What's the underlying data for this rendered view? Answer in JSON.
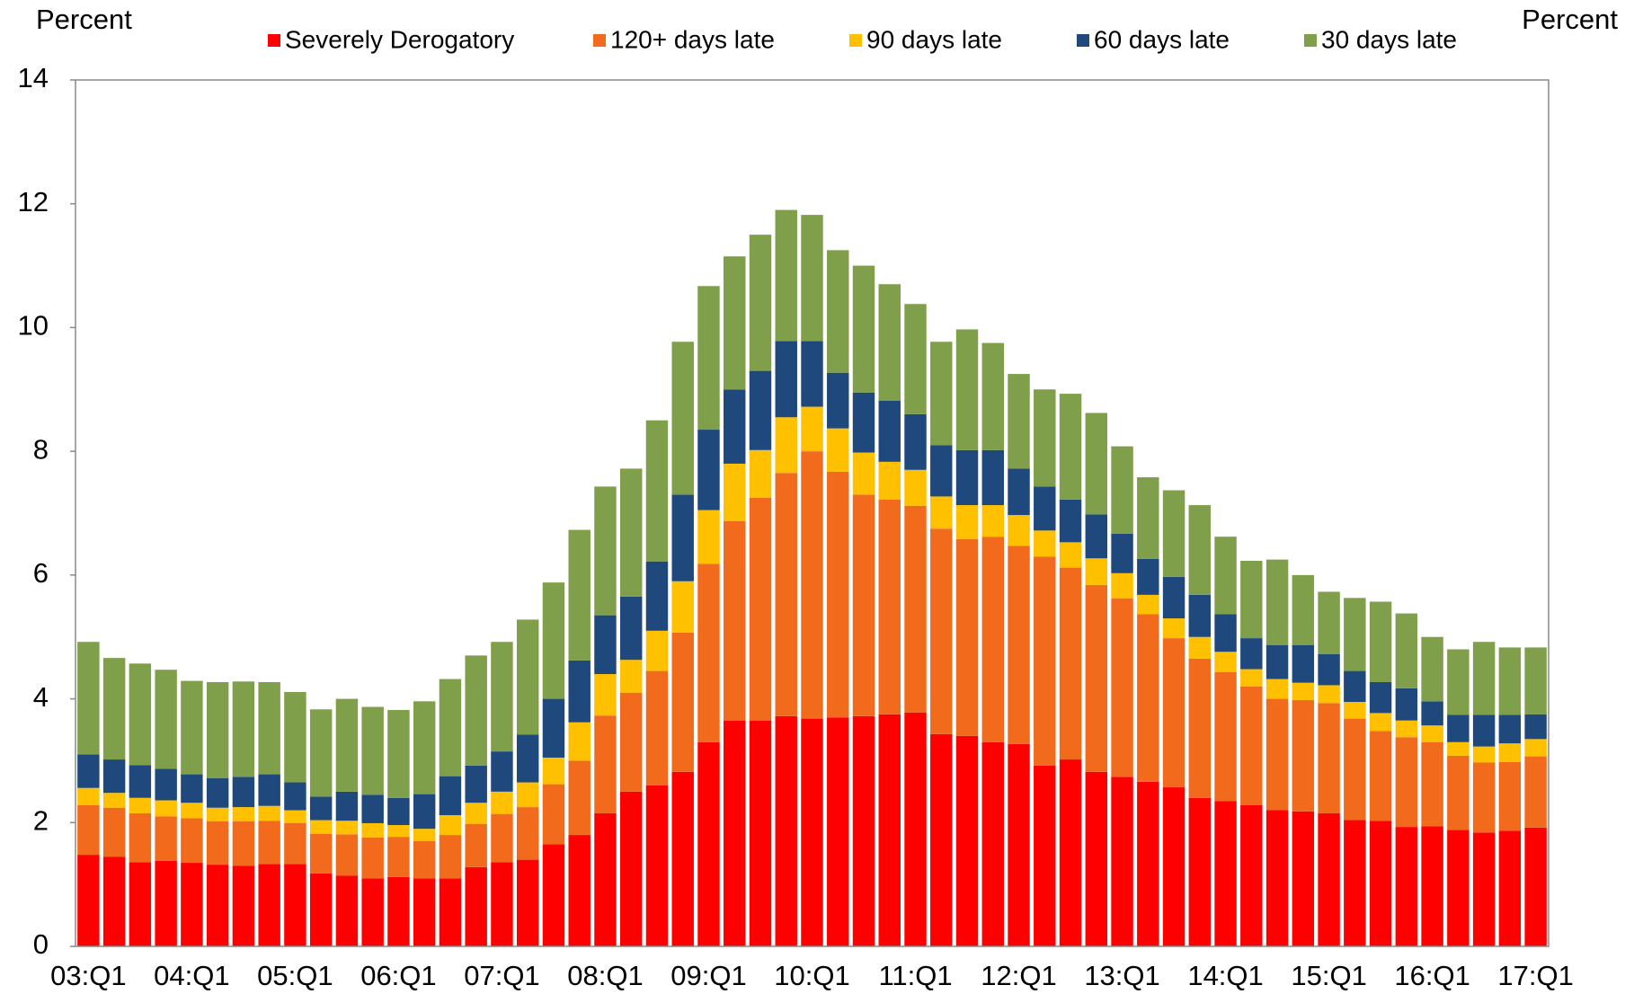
{
  "chart_data": {
    "type": "stacked_bar",
    "ylabel": "Percent",
    "ylabel_right": "Percent",
    "categories": [
      "03:Q1",
      null,
      null,
      null,
      "04:Q1",
      null,
      null,
      null,
      "05:Q1",
      null,
      null,
      null,
      "06:Q1",
      null,
      null,
      null,
      "07:Q1",
      null,
      null,
      null,
      "08:Q1",
      null,
      null,
      null,
      "09:Q1",
      null,
      null,
      null,
      "10:Q1",
      null,
      null,
      null,
      "11:Q1",
      null,
      null,
      null,
      "12:Q1",
      null,
      null,
      null,
      "13:Q1",
      null,
      null,
      null,
      "14:Q1",
      null,
      null,
      null,
      "15:Q1",
      null,
      null,
      null,
      "16:Q1",
      null,
      null,
      null,
      "17:Q1"
    ],
    "series": [
      {
        "name": "Severely Derogatory",
        "color": "#ff0000",
        "values": [
          1.48,
          1.45,
          1.36,
          1.38,
          1.35,
          1.32,
          1.3,
          1.33,
          1.33,
          1.18,
          1.14,
          1.1,
          1.12,
          1.1,
          1.1,
          1.28,
          1.36,
          1.4,
          1.65,
          1.8,
          2.15,
          2.5,
          2.6,
          2.82,
          3.3,
          3.65,
          3.65,
          3.72,
          3.68,
          3.7,
          3.72,
          3.75,
          3.78,
          3.43,
          3.4,
          3.3,
          3.27,
          2.92,
          3.02,
          2.82,
          2.74,
          2.66,
          2.57,
          2.4,
          2.35,
          2.28,
          2.2,
          2.18,
          2.15,
          2.04,
          2.03,
          1.93,
          1.94,
          1.88,
          1.84,
          1.87,
          1.92
        ]
      },
      {
        "name": "120+ days late",
        "color": "#f26b1d",
        "values": [
          0.8,
          0.79,
          0.79,
          0.72,
          0.72,
          0.7,
          0.72,
          0.7,
          0.66,
          0.64,
          0.67,
          0.66,
          0.65,
          0.6,
          0.7,
          0.7,
          0.78,
          0.85,
          0.97,
          1.2,
          1.58,
          1.6,
          1.85,
          2.25,
          2.88,
          3.22,
          3.6,
          3.93,
          4.32,
          3.97,
          3.58,
          3.47,
          3.34,
          3.32,
          3.18,
          3.32,
          3.2,
          3.38,
          3.1,
          3.02,
          2.88,
          2.71,
          2.41,
          2.25,
          2.08,
          1.92,
          1.8,
          1.8,
          1.78,
          1.64,
          1.45,
          1.45,
          1.36,
          1.2,
          1.13,
          1.11,
          1.15
        ]
      },
      {
        "name": "90 days late",
        "color": "#ffc000",
        "values": [
          0.28,
          0.24,
          0.25,
          0.26,
          0.25,
          0.22,
          0.23,
          0.24,
          0.21,
          0.22,
          0.22,
          0.23,
          0.19,
          0.2,
          0.32,
          0.34,
          0.36,
          0.4,
          0.43,
          0.62,
          0.67,
          0.53,
          0.65,
          0.83,
          0.87,
          0.93,
          0.77,
          0.9,
          0.72,
          0.7,
          0.68,
          0.61,
          0.58,
          0.52,
          0.55,
          0.51,
          0.5,
          0.42,
          0.41,
          0.43,
          0.41,
          0.31,
          0.32,
          0.35,
          0.33,
          0.28,
          0.32,
          0.28,
          0.29,
          0.27,
          0.29,
          0.27,
          0.27,
          0.22,
          0.26,
          0.3,
          0.28
        ]
      },
      {
        "name": "60 days late",
        "color": "#1f497d",
        "values": [
          0.54,
          0.54,
          0.53,
          0.51,
          0.46,
          0.48,
          0.49,
          0.51,
          0.45,
          0.38,
          0.47,
          0.46,
          0.44,
          0.56,
          0.63,
          0.6,
          0.65,
          0.77,
          0.95,
          1.0,
          0.95,
          1.02,
          1.12,
          1.4,
          1.3,
          1.2,
          1.28,
          1.23,
          1.06,
          0.9,
          0.97,
          0.99,
          0.9,
          0.83,
          0.89,
          0.89,
          0.75,
          0.71,
          0.69,
          0.71,
          0.64,
          0.58,
          0.67,
          0.68,
          0.61,
          0.5,
          0.55,
          0.61,
          0.5,
          0.5,
          0.5,
          0.52,
          0.39,
          0.44,
          0.51,
          0.46,
          0.4
        ]
      },
      {
        "name": "30 days late",
        "color": "#7f9f4a",
        "values": [
          1.82,
          1.64,
          1.64,
          1.6,
          1.51,
          1.55,
          1.54,
          1.49,
          1.46,
          1.41,
          1.5,
          1.42,
          1.42,
          1.5,
          1.57,
          1.78,
          1.77,
          1.86,
          1.88,
          2.11,
          2.08,
          2.07,
          2.28,
          2.47,
          2.32,
          2.15,
          2.2,
          2.12,
          2.04,
          1.98,
          2.05,
          1.88,
          1.78,
          1.67,
          1.95,
          1.73,
          1.53,
          1.57,
          1.71,
          1.64,
          1.41,
          1.32,
          1.4,
          1.45,
          1.25,
          1.25,
          1.38,
          1.13,
          1.01,
          1.18,
          1.3,
          1.21,
          1.04,
          1.06,
          1.18,
          1.09,
          1.08
        ]
      }
    ],
    "ylim": [
      0,
      14
    ],
    "yticks": [
      0,
      2,
      4,
      6,
      8,
      10,
      12,
      14
    ],
    "grid": false
  }
}
